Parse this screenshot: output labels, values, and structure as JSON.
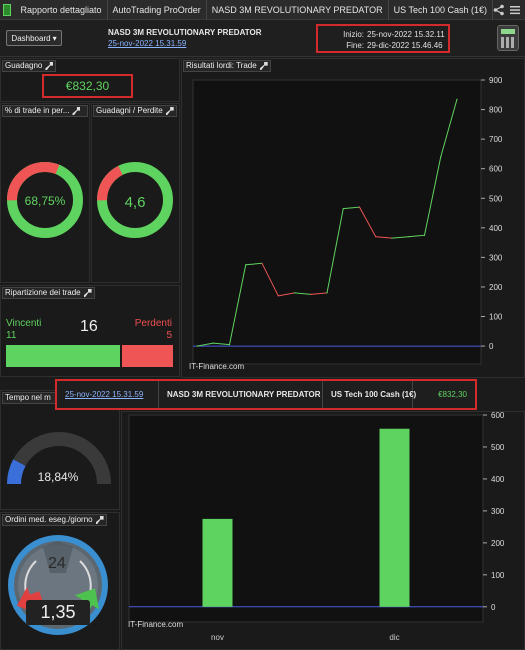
{
  "topbar": {
    "tabs": [
      "Rapporto dettagliato",
      "AutoTrading ProOrder",
      "NASD 3M REVOLUTIONARY PREDATOR",
      "US Tech 100 Cash (1€)"
    ]
  },
  "header": {
    "dashboard_label": "Dashboard",
    "strategy_name": "NASD 3M REVOLUTIONARY PREDATOR",
    "strategy_date": "25-nov-2022 15.31.59",
    "start_label": "Inizio:",
    "start_value": "25-nov-2022 15.32.11",
    "end_label": "Fine:",
    "end_value": "29-dic-2022 15.46.46"
  },
  "panels": {
    "gain_title": "Guadagno",
    "gain_value": "€832,30",
    "pct_trades_title": "% di trade in per...",
    "pct_trades_value": "68,75%",
    "ratio_title": "Guadagni / Perdite",
    "ratio_value": "4,6",
    "breakdown_title": "Ripartizione dei trade",
    "winners_label": "Vincenti",
    "winners_count": "11",
    "losers_label": "Perdenti",
    "losers_count": "5",
    "total_trades": "16",
    "time_title": "Tempo nel m",
    "time_value": "18,84%",
    "orders_title": "Ordini med. eseg./giorno",
    "orders_value": "1,35",
    "clock_hours": "24",
    "gross_title": "Risultati lordi: Trade"
  },
  "info_strip": {
    "date": "25-nov-2022 15.31.59",
    "strategy": "NASD 3M REVOLUTIONARY PREDATOR",
    "instrument": "US Tech 100 Cash (1€)",
    "gain": "€832,30"
  },
  "colors": {
    "green": "#5fd35f",
    "red": "#f05555",
    "highlight": "#d42a2a",
    "gauge_blue": "#3a6ed8"
  },
  "watermark": "IT-Finance.com",
  "chart_data": [
    {
      "type": "line",
      "title": "Risultati lordi: Trade",
      "ylim": [
        -20,
        900
      ],
      "yticks": [
        0,
        100,
        200,
        300,
        400,
        500,
        600,
        700,
        800,
        900
      ],
      "x": [
        0,
        1,
        2,
        3,
        4,
        5,
        6,
        7,
        8,
        9,
        10,
        11,
        12,
        13,
        14,
        15,
        16
      ],
      "y": [
        0,
        10,
        5,
        275,
        280,
        170,
        180,
        175,
        180,
        465,
        470,
        370,
        365,
        370,
        375,
        640,
        835
      ],
      "segment_colors": [
        "#5fd35f",
        "#5fd35f",
        "#5fd35f",
        "#5fd35f",
        "#f05555",
        "#f05555",
        "#5fd35f",
        "#f05555",
        "#5fd35f",
        "#5fd35f",
        "#f05555",
        "#f05555",
        "#5fd35f",
        "#5fd35f",
        "#5fd35f",
        "#5fd35f"
      ],
      "grid": false
    },
    {
      "type": "bar",
      "categories": [
        "nov",
        "dic"
      ],
      "values": [
        275,
        557
      ],
      "ylim": [
        -10,
        600
      ],
      "yticks": [
        0,
        100,
        200,
        300,
        400,
        500,
        600
      ],
      "grid": false
    }
  ]
}
